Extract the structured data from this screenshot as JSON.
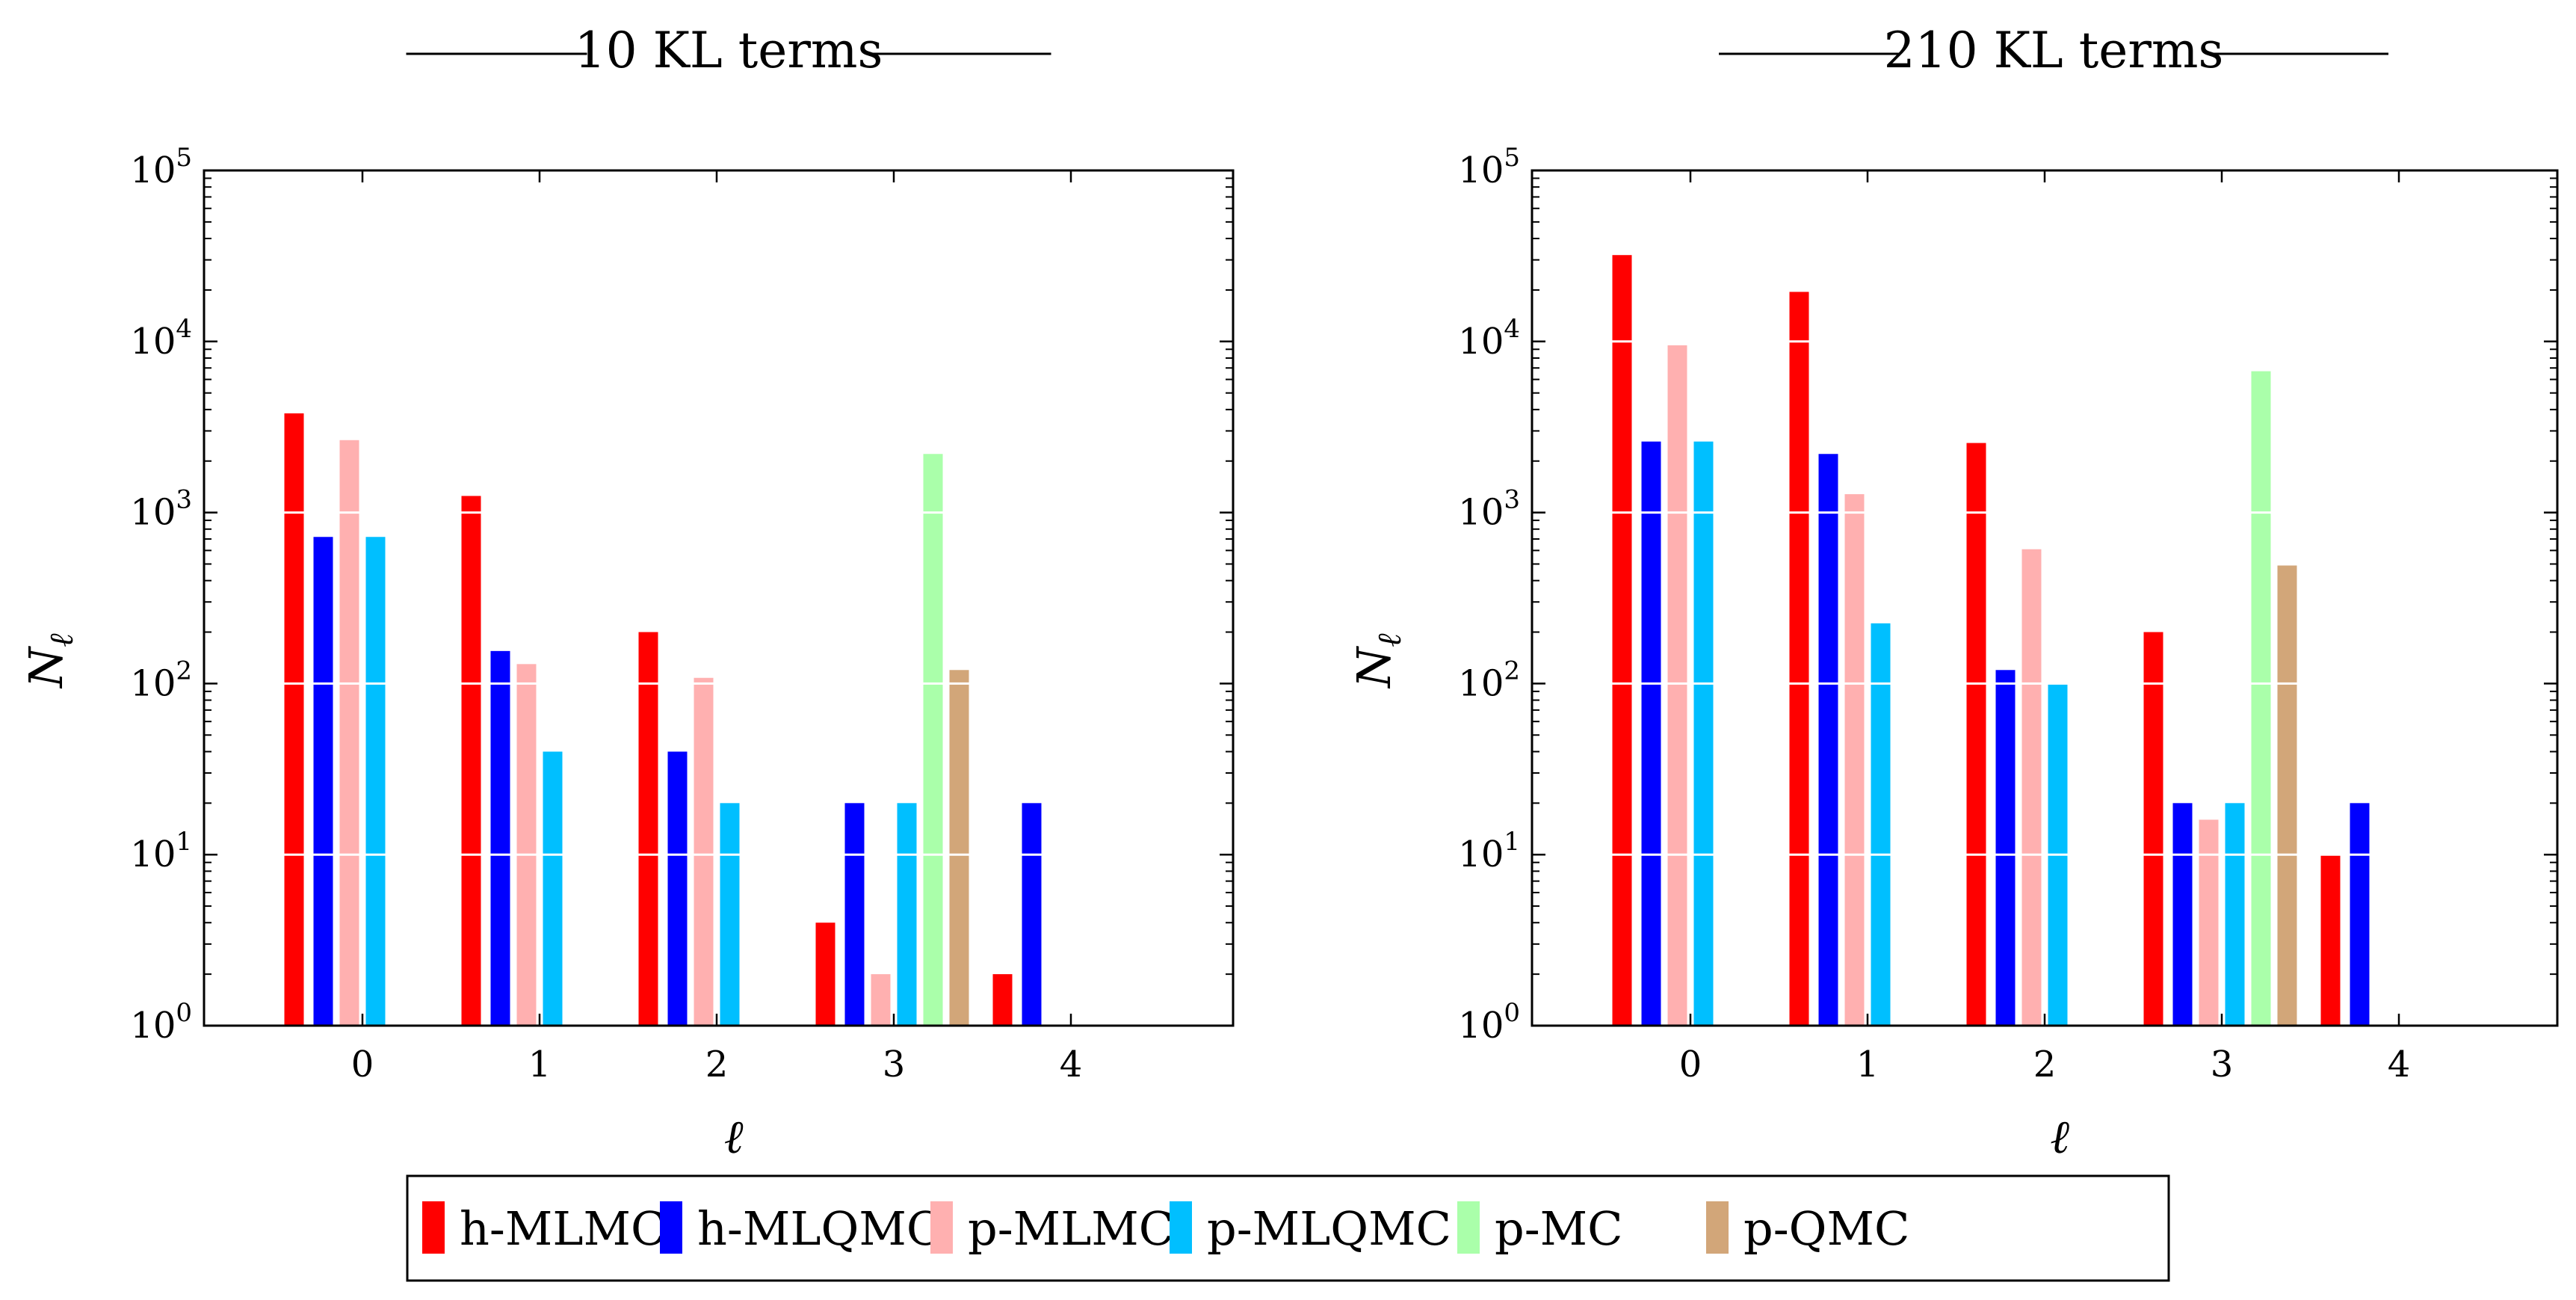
{
  "chart_data": [
    {
      "type": "bar",
      "title": "10 KL terms",
      "xlabel": "ℓ",
      "ylabel": "N_ℓ",
      "ylabel_main": "N",
      "ylabel_sub": "ℓ",
      "yscale": "log",
      "ylim": [
        1,
        100000
      ],
      "yticks": [
        {
          "base": "10",
          "exp": "0"
        },
        {
          "base": "10",
          "exp": "1"
        },
        {
          "base": "10",
          "exp": "2"
        },
        {
          "base": "10",
          "exp": "3"
        },
        {
          "base": "10",
          "exp": "4"
        },
        {
          "base": "10",
          "exp": "5"
        }
      ],
      "categories": [
        "0",
        "1",
        "2",
        "3",
        "4"
      ],
      "series": [
        {
          "name": "h-MLMC",
          "values": [
            3800,
            1250,
            200,
            4,
            2
          ]
        },
        {
          "name": "h-MLQMC",
          "values": [
            720,
            155,
            40,
            20,
            20
          ]
        },
        {
          "name": "p-MLMC",
          "values": [
            2650,
            130,
            108,
            2,
            null
          ]
        },
        {
          "name": "p-MLQMC",
          "values": [
            720,
            40,
            20,
            20,
            null
          ]
        },
        {
          "name": "p-MC",
          "values": [
            null,
            null,
            null,
            2200,
            null
          ]
        },
        {
          "name": "p-QMC",
          "values": [
            null,
            null,
            null,
            120,
            null
          ]
        }
      ]
    },
    {
      "type": "bar",
      "title": "210 KL terms",
      "xlabel": "ℓ",
      "ylabel": "N_ℓ",
      "ylabel_main": "N",
      "ylabel_sub": "ℓ",
      "yscale": "log",
      "ylim": [
        1,
        100000
      ],
      "yticks": [
        {
          "base": "10",
          "exp": "0"
        },
        {
          "base": "10",
          "exp": "1"
        },
        {
          "base": "10",
          "exp": "2"
        },
        {
          "base": "10",
          "exp": "3"
        },
        {
          "base": "10",
          "exp": "4"
        },
        {
          "base": "10",
          "exp": "5"
        }
      ],
      "categories": [
        "0",
        "1",
        "2",
        "3",
        "4"
      ],
      "series": [
        {
          "name": "h-MLMC",
          "values": [
            32000,
            19500,
            2550,
            200,
            10
          ]
        },
        {
          "name": "h-MLQMC",
          "values": [
            2600,
            2200,
            120,
            20,
            20
          ]
        },
        {
          "name": "p-MLMC",
          "values": [
            9500,
            1280,
            610,
            16,
            null
          ]
        },
        {
          "name": "p-MLQMC",
          "values": [
            2600,
            225,
            100,
            20,
            null
          ]
        },
        {
          "name": "p-MC",
          "values": [
            null,
            null,
            null,
            6700,
            null
          ]
        },
        {
          "name": "p-QMC",
          "values": [
            null,
            null,
            null,
            490,
            null
          ]
        }
      ]
    }
  ],
  "legend": [
    {
      "label": "h-MLMC",
      "color": "#ff0000"
    },
    {
      "label": "h-MLQMC",
      "color": "#0000ff"
    },
    {
      "label": "p-MLMC",
      "color": "#ffb0b0"
    },
    {
      "label": "p-MLQMC",
      "color": "#00bfff"
    },
    {
      "label": "p-MC",
      "color": "#aaffaa"
    },
    {
      "label": "p-QMC",
      "color": "#d2a679"
    }
  ]
}
